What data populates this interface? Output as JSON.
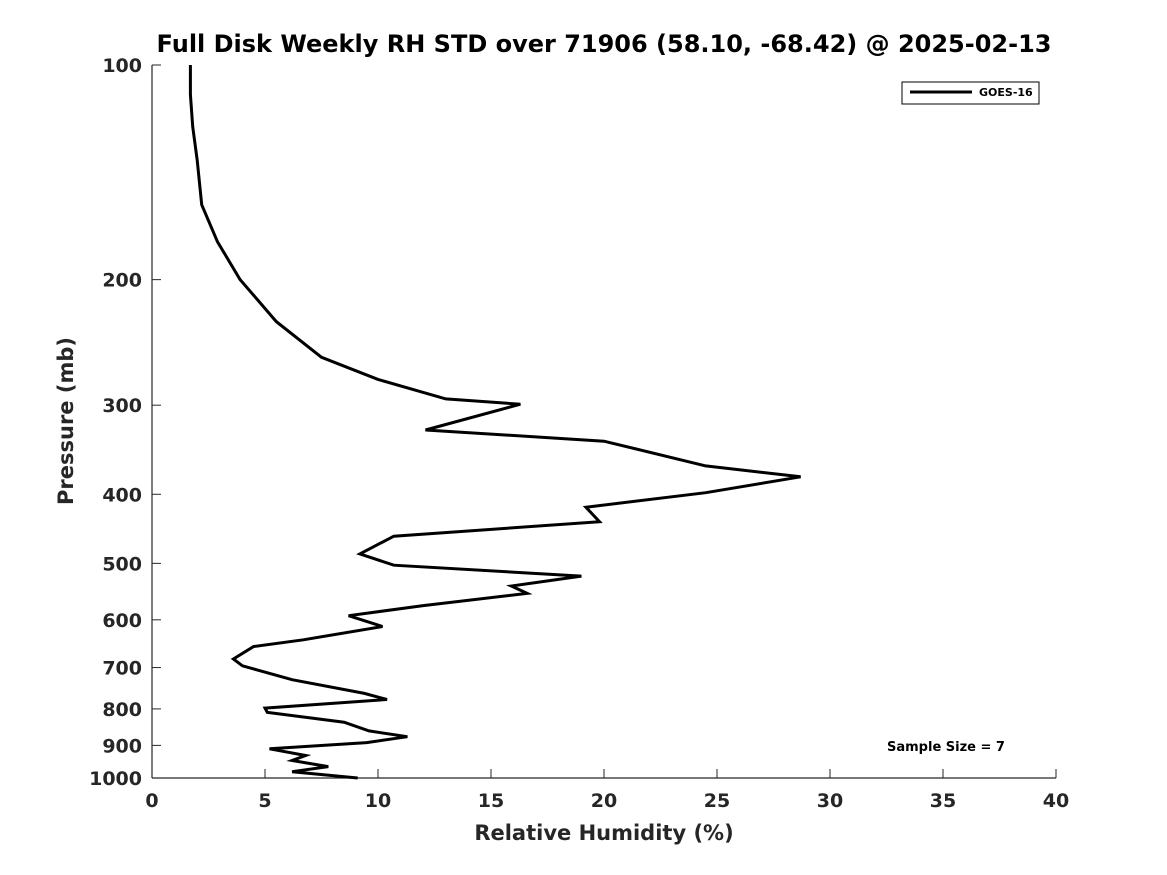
{
  "chart_data": {
    "type": "line",
    "title": "Full Disk Weekly RH STD over 71906 (58.10, -68.42) @ 2025-02-13",
    "xlabel": "Relative Humidity (%)",
    "ylabel": "Pressure (mb)",
    "xlim": [
      0,
      40
    ],
    "ylim": [
      100,
      1000
    ],
    "yscale": "log",
    "grid": false,
    "legend_position": "top-right",
    "x_ticks": [
      0,
      5,
      10,
      15,
      20,
      25,
      30,
      35,
      40
    ],
    "x_tick_labels": [
      "0",
      "5",
      "10",
      "15",
      "20",
      "25",
      "30",
      "35",
      "40"
    ],
    "y_ticks": [
      100,
      200,
      300,
      400,
      500,
      600,
      700,
      800,
      900,
      1000
    ],
    "y_tick_labels": [
      "100",
      "200",
      "300",
      "400",
      "500",
      "600",
      "700",
      "800",
      "900",
      "1000"
    ],
    "annotation": "Sample Size = 7",
    "series": [
      {
        "name": "GOES-16",
        "color": "#000000",
        "x": [
          1.7,
          1.7,
          1.8,
          2.0,
          2.2,
          2.9,
          3.9,
          5.5,
          7.5,
          10.0,
          13.0,
          16.3,
          12.1,
          20.0,
          24.5,
          28.7,
          24.5,
          19.2,
          19.8,
          10.7,
          9.2,
          10.7,
          19.0,
          15.9,
          16.6,
          12.0,
          8.7,
          10.2,
          6.7,
          4.5,
          3.6,
          4.0,
          6.2,
          9.4,
          10.4,
          5.0,
          5.1,
          8.5,
          9.6,
          11.3,
          9.5,
          5.2,
          6.8,
          6.2,
          7.8,
          6.2,
          9.1
        ],
        "y": [
          100,
          110,
          122,
          136,
          157,
          177,
          200,
          229,
          257,
          276,
          294,
          299,
          325,
          337,
          365,
          378,
          398,
          417,
          437,
          458,
          485,
          503,
          521,
          538,
          551,
          573,
          592,
          613,
          640,
          654,
          681,
          696,
          728,
          761,
          776,
          798,
          809,
          835,
          859,
          875,
          892,
          910,
          930,
          945,
          964,
          980,
          1000
        ]
      }
    ]
  }
}
